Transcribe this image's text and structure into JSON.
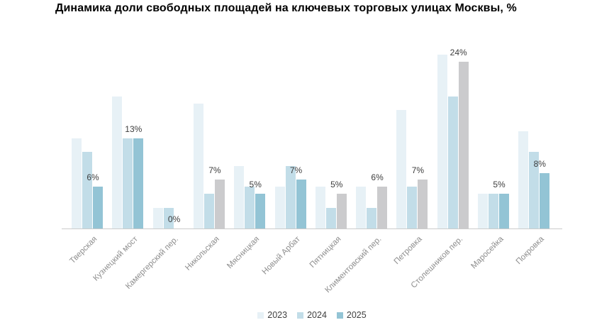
{
  "title": "Динамика доли свободных площадей на ключевых торговых улицах Москвы, %",
  "chart_data": {
    "type": "bar",
    "title": "Динамика доли свободных площадей на ключевых торговых улицах Москвы, %",
    "xlabel": "",
    "ylabel": "",
    "unit": "%",
    "ylim": [
      0,
      26
    ],
    "grid": false,
    "legend_position": "bottom-center",
    "categories": [
      "Тверская",
      "Кузнецкий мост",
      "Камергерский пер.",
      "Никольская",
      "Мясницкая",
      "Новый Арбат",
      "Пятницкая",
      "Климентовский пер.",
      "Петровка",
      "Столешников пер.",
      "Маросейка",
      "Покровка"
    ],
    "series": [
      {
        "name": "2023",
        "color": "#e7f1f6",
        "values": [
          13,
          19,
          3,
          18,
          9,
          6,
          6,
          6,
          17,
          25,
          5,
          14
        ]
      },
      {
        "name": "2024",
        "color": "#c2dde8",
        "values": [
          11,
          13,
          3,
          5,
          6,
          9,
          3,
          3,
          6,
          19,
          5,
          11
        ]
      },
      {
        "name": "2025",
        "color": "#93c4d5",
        "values": [
          6,
          13,
          0,
          7,
          5,
          7,
          5,
          6,
          7,
          24,
          5,
          8
        ]
      }
    ],
    "value_labels_2025": [
      "6%",
      "13%",
      "0%",
      "7%",
      "5%",
      "7%",
      "5%",
      "6%",
      "7%",
      "24%",
      "5%",
      "8%"
    ],
    "muted_2025": [
      false,
      false,
      false,
      true,
      false,
      false,
      true,
      true,
      true,
      true,
      false,
      false
    ],
    "muted_color": "#cbcbcd"
  },
  "colors": {
    "background": "#ffffff",
    "axis": "#cccccc",
    "title": "#000000",
    "value_label": "#3d3d3d",
    "x_label": "#8e8e8e",
    "legend_text": "#3f3f3f"
  }
}
